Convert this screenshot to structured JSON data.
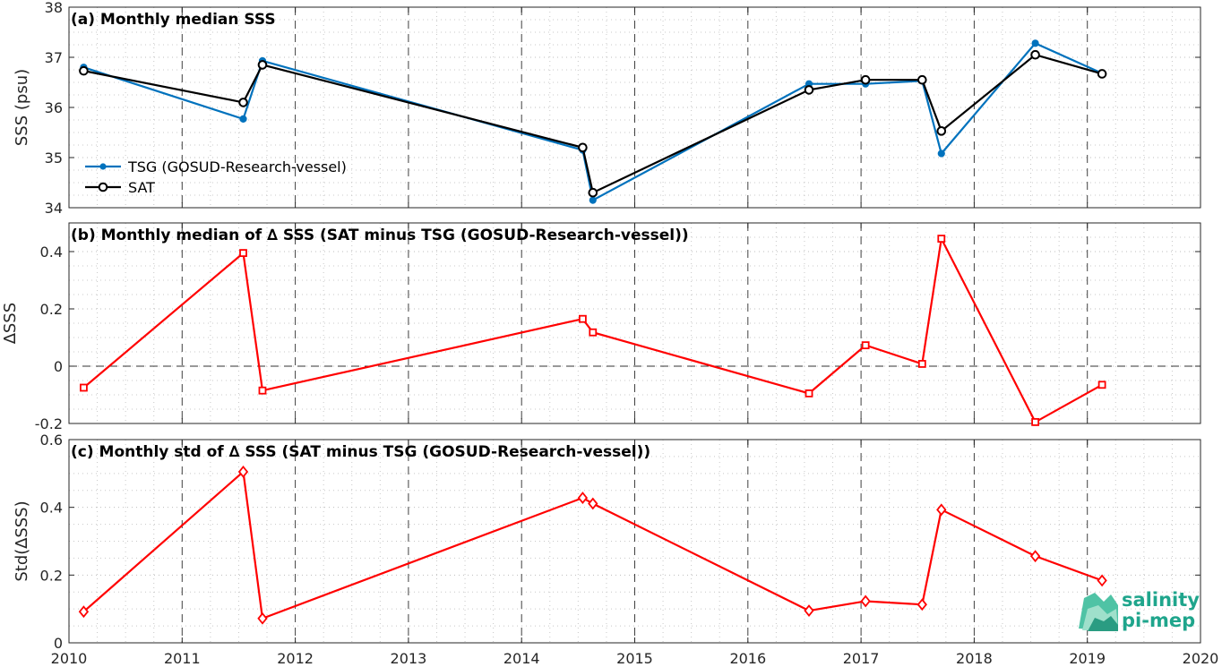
{
  "chart_data": [
    {
      "type": "line",
      "title": "(a) Monthly median SSS",
      "xlabel": "",
      "ylabel": "SSS (psu)",
      "xlim": [
        2010,
        2020
      ],
      "ylim": [
        34,
        38
      ],
      "x_ticks": [
        "2010",
        "2011",
        "2012",
        "2013",
        "2014",
        "2015",
        "2016",
        "2017",
        "2018",
        "2019",
        "2020"
      ],
      "y_ticks": [
        "34",
        "35",
        "36",
        "37",
        "38"
      ],
      "grid": "dotted minor + dashed yearly",
      "legend_position": "lower-left",
      "x": [
        2010.13,
        2011.54,
        2011.71,
        2014.54,
        2014.63,
        2016.54,
        2017.04,
        2017.54,
        2017.71,
        2018.54,
        2019.13
      ],
      "series": [
        {
          "name": "TSG (GOSUD-Research-vessel)",
          "color": "#0072bd",
          "marker": "dot",
          "values": [
            36.8,
            35.77,
            36.93,
            35.15,
            34.15,
            36.47,
            36.47,
            36.53,
            35.08,
            37.28,
            36.68
          ]
        },
        {
          "name": "SAT",
          "color": "#000000",
          "marker": "circle",
          "values": [
            36.73,
            36.1,
            36.85,
            35.2,
            34.3,
            36.35,
            36.55,
            36.55,
            35.53,
            37.05,
            36.67
          ]
        }
      ]
    },
    {
      "type": "line",
      "title": "(b) Monthly median of ∆ SSS (SAT minus TSG (GOSUD-Research-vessel))",
      "xlabel": "",
      "ylabel": "∆SSS",
      "xlim": [
        2010,
        2020
      ],
      "ylim": [
        -0.2,
        0.5
      ],
      "y_ticks": [
        "-0.2",
        "0",
        "0.2",
        "0.4"
      ],
      "zero_line": "dashed",
      "x": [
        2010.13,
        2011.54,
        2011.71,
        2014.54,
        2014.63,
        2016.54,
        2017.04,
        2017.54,
        2017.71,
        2018.54,
        2019.13
      ],
      "series": [
        {
          "color": "#ff0000",
          "marker": "square",
          "values": [
            -0.075,
            0.395,
            -0.085,
            0.165,
            0.118,
            -0.095,
            0.073,
            0.008,
            0.445,
            -0.195,
            -0.065
          ]
        }
      ]
    },
    {
      "type": "line",
      "title": "(c) Monthly std of ∆ SSS (SAT minus TSG (GOSUD-Research-vessel))",
      "xlabel": "",
      "ylabel": "Std(∆SSS)",
      "xlim": [
        2010,
        2020
      ],
      "ylim": [
        0,
        0.6
      ],
      "y_ticks": [
        "0",
        "0.2",
        "0.4",
        "0.6"
      ],
      "x": [
        2010.13,
        2011.54,
        2011.71,
        2014.54,
        2014.63,
        2016.54,
        2017.04,
        2017.54,
        2017.71,
        2018.54,
        2019.13
      ],
      "series": [
        {
          "color": "#ff0000",
          "marker": "diamond",
          "values": [
            0.092,
            0.505,
            0.072,
            0.428,
            0.411,
            0.095,
            0.123,
            0.113,
            0.393,
            0.256,
            0.184
          ]
        }
      ]
    }
  ],
  "logo": {
    "line1": "salinity",
    "line2": "pi-mep",
    "color": "#1fa58c"
  }
}
